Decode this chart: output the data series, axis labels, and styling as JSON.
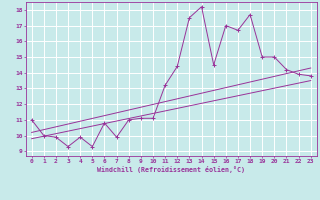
{
  "background_color": "#c8eaea",
  "grid_color": "#ffffff",
  "line_color": "#993399",
  "x_ticks": [
    0,
    1,
    2,
    3,
    4,
    5,
    6,
    7,
    8,
    9,
    10,
    11,
    12,
    13,
    14,
    15,
    16,
    17,
    18,
    19,
    20,
    21,
    22,
    23
  ],
  "y_ticks": [
    9,
    10,
    11,
    12,
    13,
    14,
    15,
    16,
    17,
    18
  ],
  "xlabel": "Windchill (Refroidissement éolien,°C)",
  "xlim": [
    -0.5,
    23.5
  ],
  "ylim": [
    8.7,
    18.5
  ],
  "series1_x": [
    0,
    1,
    2,
    3,
    4,
    5,
    6,
    7,
    8,
    9,
    10,
    11,
    12,
    13,
    14,
    15,
    16,
    17,
    18,
    19,
    20,
    21,
    22,
    23
  ],
  "series1_y": [
    11.0,
    10.0,
    9.9,
    9.3,
    9.9,
    9.3,
    10.8,
    9.9,
    11.0,
    11.1,
    11.1,
    13.2,
    14.4,
    17.5,
    18.2,
    14.5,
    17.0,
    16.7,
    17.7,
    15.0,
    15.0,
    14.2,
    13.9,
    13.8
  ],
  "series2_x": [
    0,
    23
  ],
  "series2_y": [
    10.2,
    14.3
  ],
  "series3_x": [
    0,
    23
  ],
  "series3_y": [
    9.8,
    13.5
  ],
  "figwidth": 3.2,
  "figheight": 2.0,
  "dpi": 100
}
